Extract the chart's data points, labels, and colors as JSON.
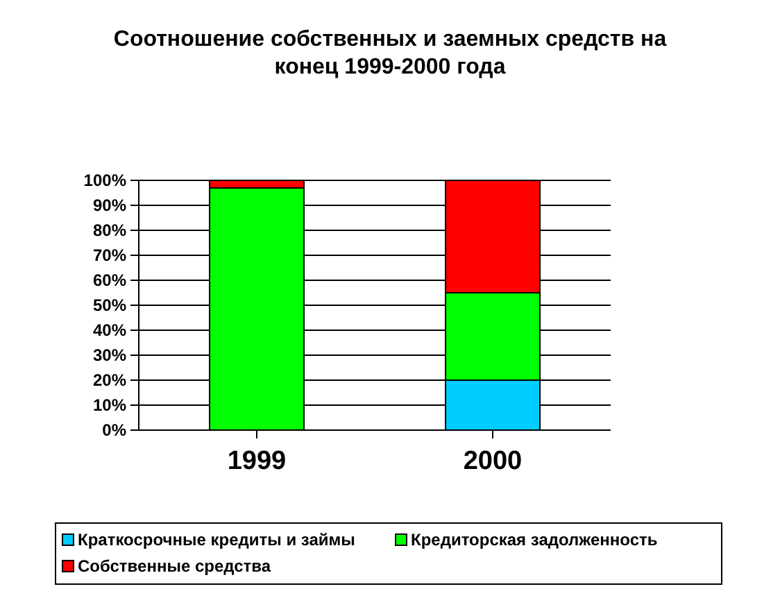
{
  "chart_data": {
    "type": "bar",
    "title": "Соотношение собственных и заемных средств  на\nконец 1999-2000 года",
    "categories": [
      "1999",
      "2000"
    ],
    "stacked": true,
    "series": [
      {
        "name": "Краткосрочные кредиты и займы",
        "color": "#00ccff",
        "values": [
          0,
          20
        ]
      },
      {
        "name": "Кредиторская задолженность",
        "color": "#00ff00",
        "values": [
          97,
          35
        ]
      },
      {
        "name": "Собственные средства",
        "color": "#ff0000",
        "values": [
          3,
          45
        ]
      }
    ],
    "ylim": [
      0,
      100
    ],
    "yticks": [
      {
        "value": 0,
        "label": "0%"
      },
      {
        "value": 10,
        "label": "10%"
      },
      {
        "value": 20,
        "label": "20%"
      },
      {
        "value": 30,
        "label": "30%"
      },
      {
        "value": 40,
        "label": "40%"
      },
      {
        "value": 50,
        "label": "50%"
      },
      {
        "value": 60,
        "label": "60%"
      },
      {
        "value": 70,
        "label": "70%"
      },
      {
        "value": 80,
        "label": "80%"
      },
      {
        "value": 90,
        "label": "90%"
      },
      {
        "value": 100,
        "label": "100%"
      }
    ],
    "grid": "y",
    "legend": "bottom"
  }
}
